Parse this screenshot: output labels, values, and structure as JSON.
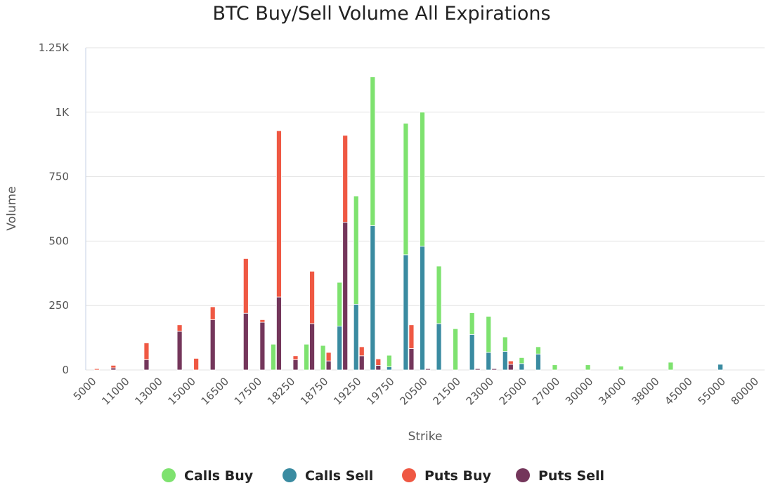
{
  "chart_data": {
    "type": "bar",
    "stacked": true,
    "title": "BTC Buy/Sell Volume All Expirations",
    "x_label": "Strike",
    "y_label": "Volume",
    "categories": [
      "5000",
      null,
      "11000",
      null,
      "13000",
      null,
      "15000",
      null,
      "16500",
      null,
      "17500",
      null,
      "18250",
      null,
      "18750",
      null,
      "19250",
      null,
      "19750",
      null,
      "20500",
      null,
      "21500",
      null,
      "23000",
      null,
      "25000",
      null,
      "27000",
      null,
      "30000",
      null,
      "34000",
      null,
      "38000",
      null,
      "45000",
      null,
      "55000",
      null,
      "80000"
    ],
    "series": [
      {
        "name": "Calls Buy",
        "color": "#7ee26f",
        "stack": "calls",
        "values": [
          0,
          0,
          0,
          0,
          0,
          0,
          0,
          0,
          0,
          0,
          0,
          100,
          0,
          100,
          95,
          170,
          420,
          577,
          45,
          510,
          520,
          223,
          160,
          84,
          140,
          56,
          23,
          28,
          20,
          0,
          20,
          0,
          15,
          0,
          0,
          30,
          0,
          0,
          0,
          0,
          0
        ]
      },
      {
        "name": "Calls Sell",
        "color": "#3a8ba1",
        "stack": "calls",
        "values": [
          0,
          0,
          0,
          0,
          0,
          0,
          0,
          0,
          0,
          0,
          0,
          0,
          0,
          0,
          0,
          170,
          255,
          560,
          12,
          447,
          480,
          180,
          0,
          138,
          68,
          72,
          25,
          62,
          0,
          0,
          0,
          0,
          0,
          0,
          0,
          0,
          0,
          0,
          22,
          0,
          0
        ]
      },
      {
        "name": "Puts Buy",
        "color": "#ef5843",
        "stack": "puts",
        "values": [
          5,
          10,
          0,
          65,
          0,
          25,
          45,
          50,
          0,
          212,
          10,
          645,
          15,
          203,
          33,
          337,
          35,
          25,
          0,
          92,
          0,
          0,
          0,
          0,
          0,
          13,
          0,
          0,
          0,
          0,
          0,
          0,
          0,
          0,
          0,
          0,
          0,
          0,
          0,
          0,
          0
        ]
      },
      {
        "name": "Puts Sell",
        "color": "#74365b",
        "stack": "puts",
        "values": [
          0,
          8,
          0,
          40,
          0,
          150,
          0,
          195,
          0,
          220,
          185,
          283,
          40,
          180,
          35,
          573,
          55,
          18,
          0,
          83,
          5,
          0,
          0,
          5,
          5,
          22,
          0,
          0,
          0,
          0,
          0,
          0,
          0,
          0,
          0,
          0,
          0,
          0,
          0,
          0,
          0
        ]
      }
    ],
    "ylim": [
      0,
      1250
    ],
    "yticks": [
      0,
      250,
      500,
      750,
      {
        "value": 1000,
        "label": "1K"
      },
      {
        "value": 1250,
        "label": "1.25K"
      }
    ],
    "grid": true,
    "legend": "bottom"
  }
}
